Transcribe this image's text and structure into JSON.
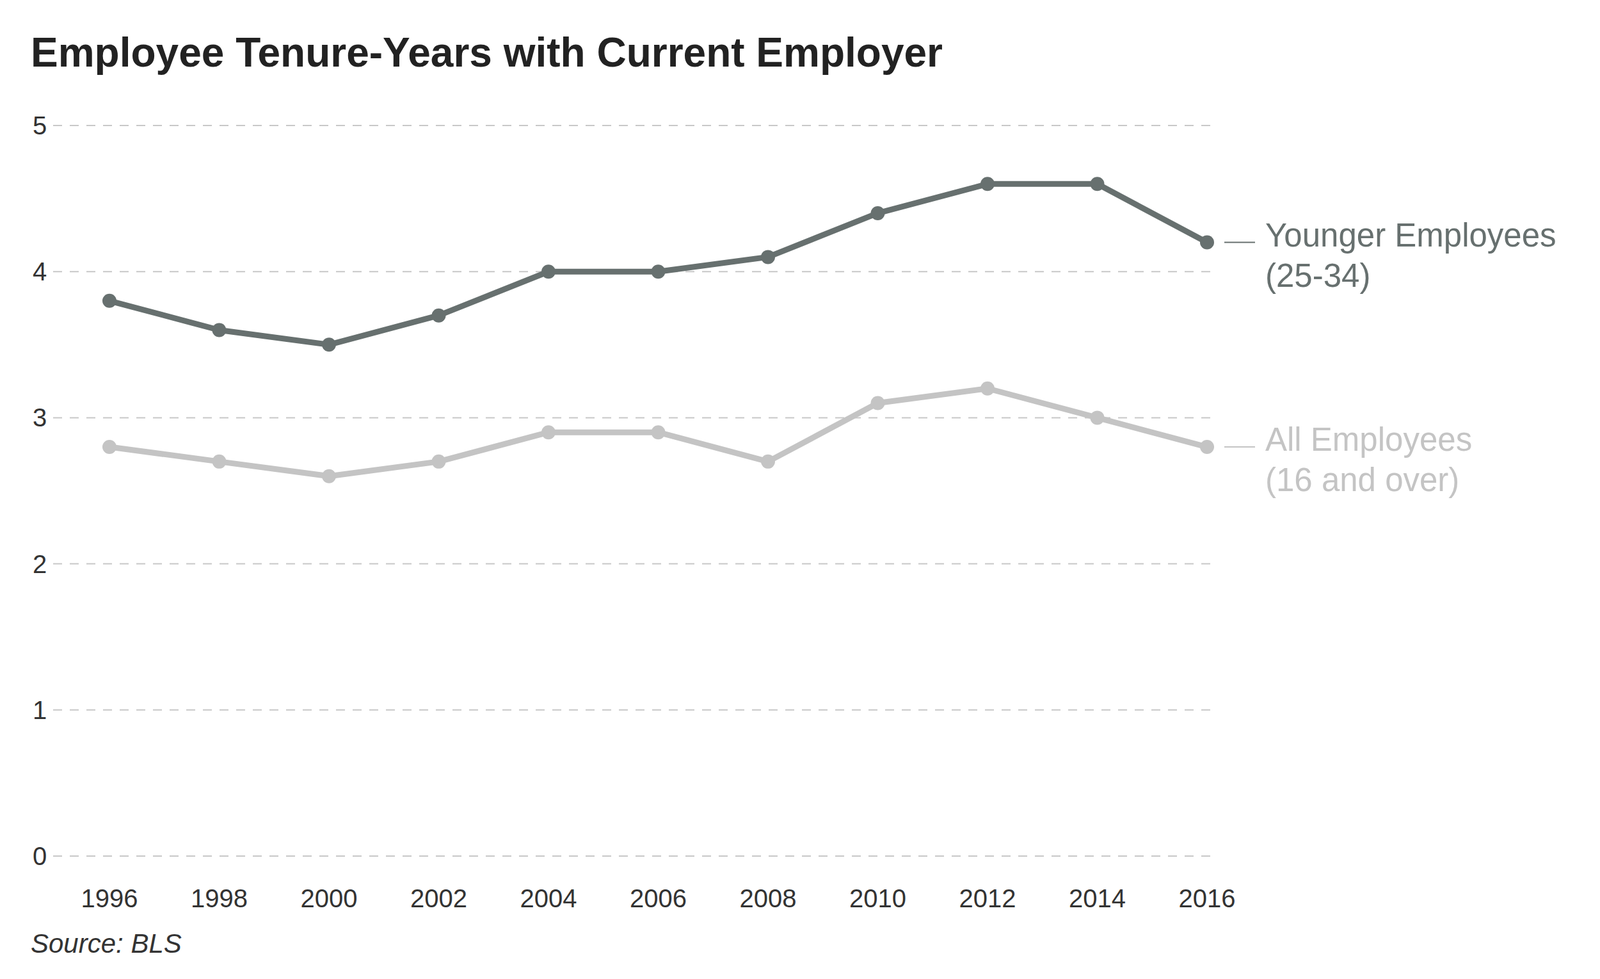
{
  "chart_data": {
    "type": "line",
    "title": "Employee Tenure-Years with Current Employer",
    "source": "Source: BLS",
    "x": [
      1996,
      1998,
      2000,
      2002,
      2004,
      2006,
      2008,
      2010,
      2012,
      2014,
      2016
    ],
    "xlim": [
      1996,
      2016
    ],
    "xticks": [
      1996,
      1998,
      2000,
      2002,
      2004,
      2006,
      2008,
      2010,
      2012,
      2014,
      2016
    ],
    "ylim": [
      0,
      5
    ],
    "yticks": [
      0,
      1,
      2,
      3,
      4,
      5
    ],
    "grid": true,
    "legend": "right",
    "series": [
      {
        "name": "Younger Employees\n(25-34)",
        "color": "#67706f",
        "marker": "circle",
        "line_style": "solid",
        "values": [
          3.8,
          3.6,
          3.5,
          3.7,
          4.0,
          4.0,
          4.1,
          4.4,
          4.6,
          4.6,
          4.2
        ]
      },
      {
        "name": "All Employees\n(16 and over)",
        "color": "#c4c4c4",
        "marker": "circle",
        "line_style": "solid",
        "values": [
          2.8,
          2.7,
          2.6,
          2.7,
          2.9,
          2.9,
          2.7,
          3.1,
          3.2,
          3.0,
          2.8
        ]
      }
    ]
  }
}
